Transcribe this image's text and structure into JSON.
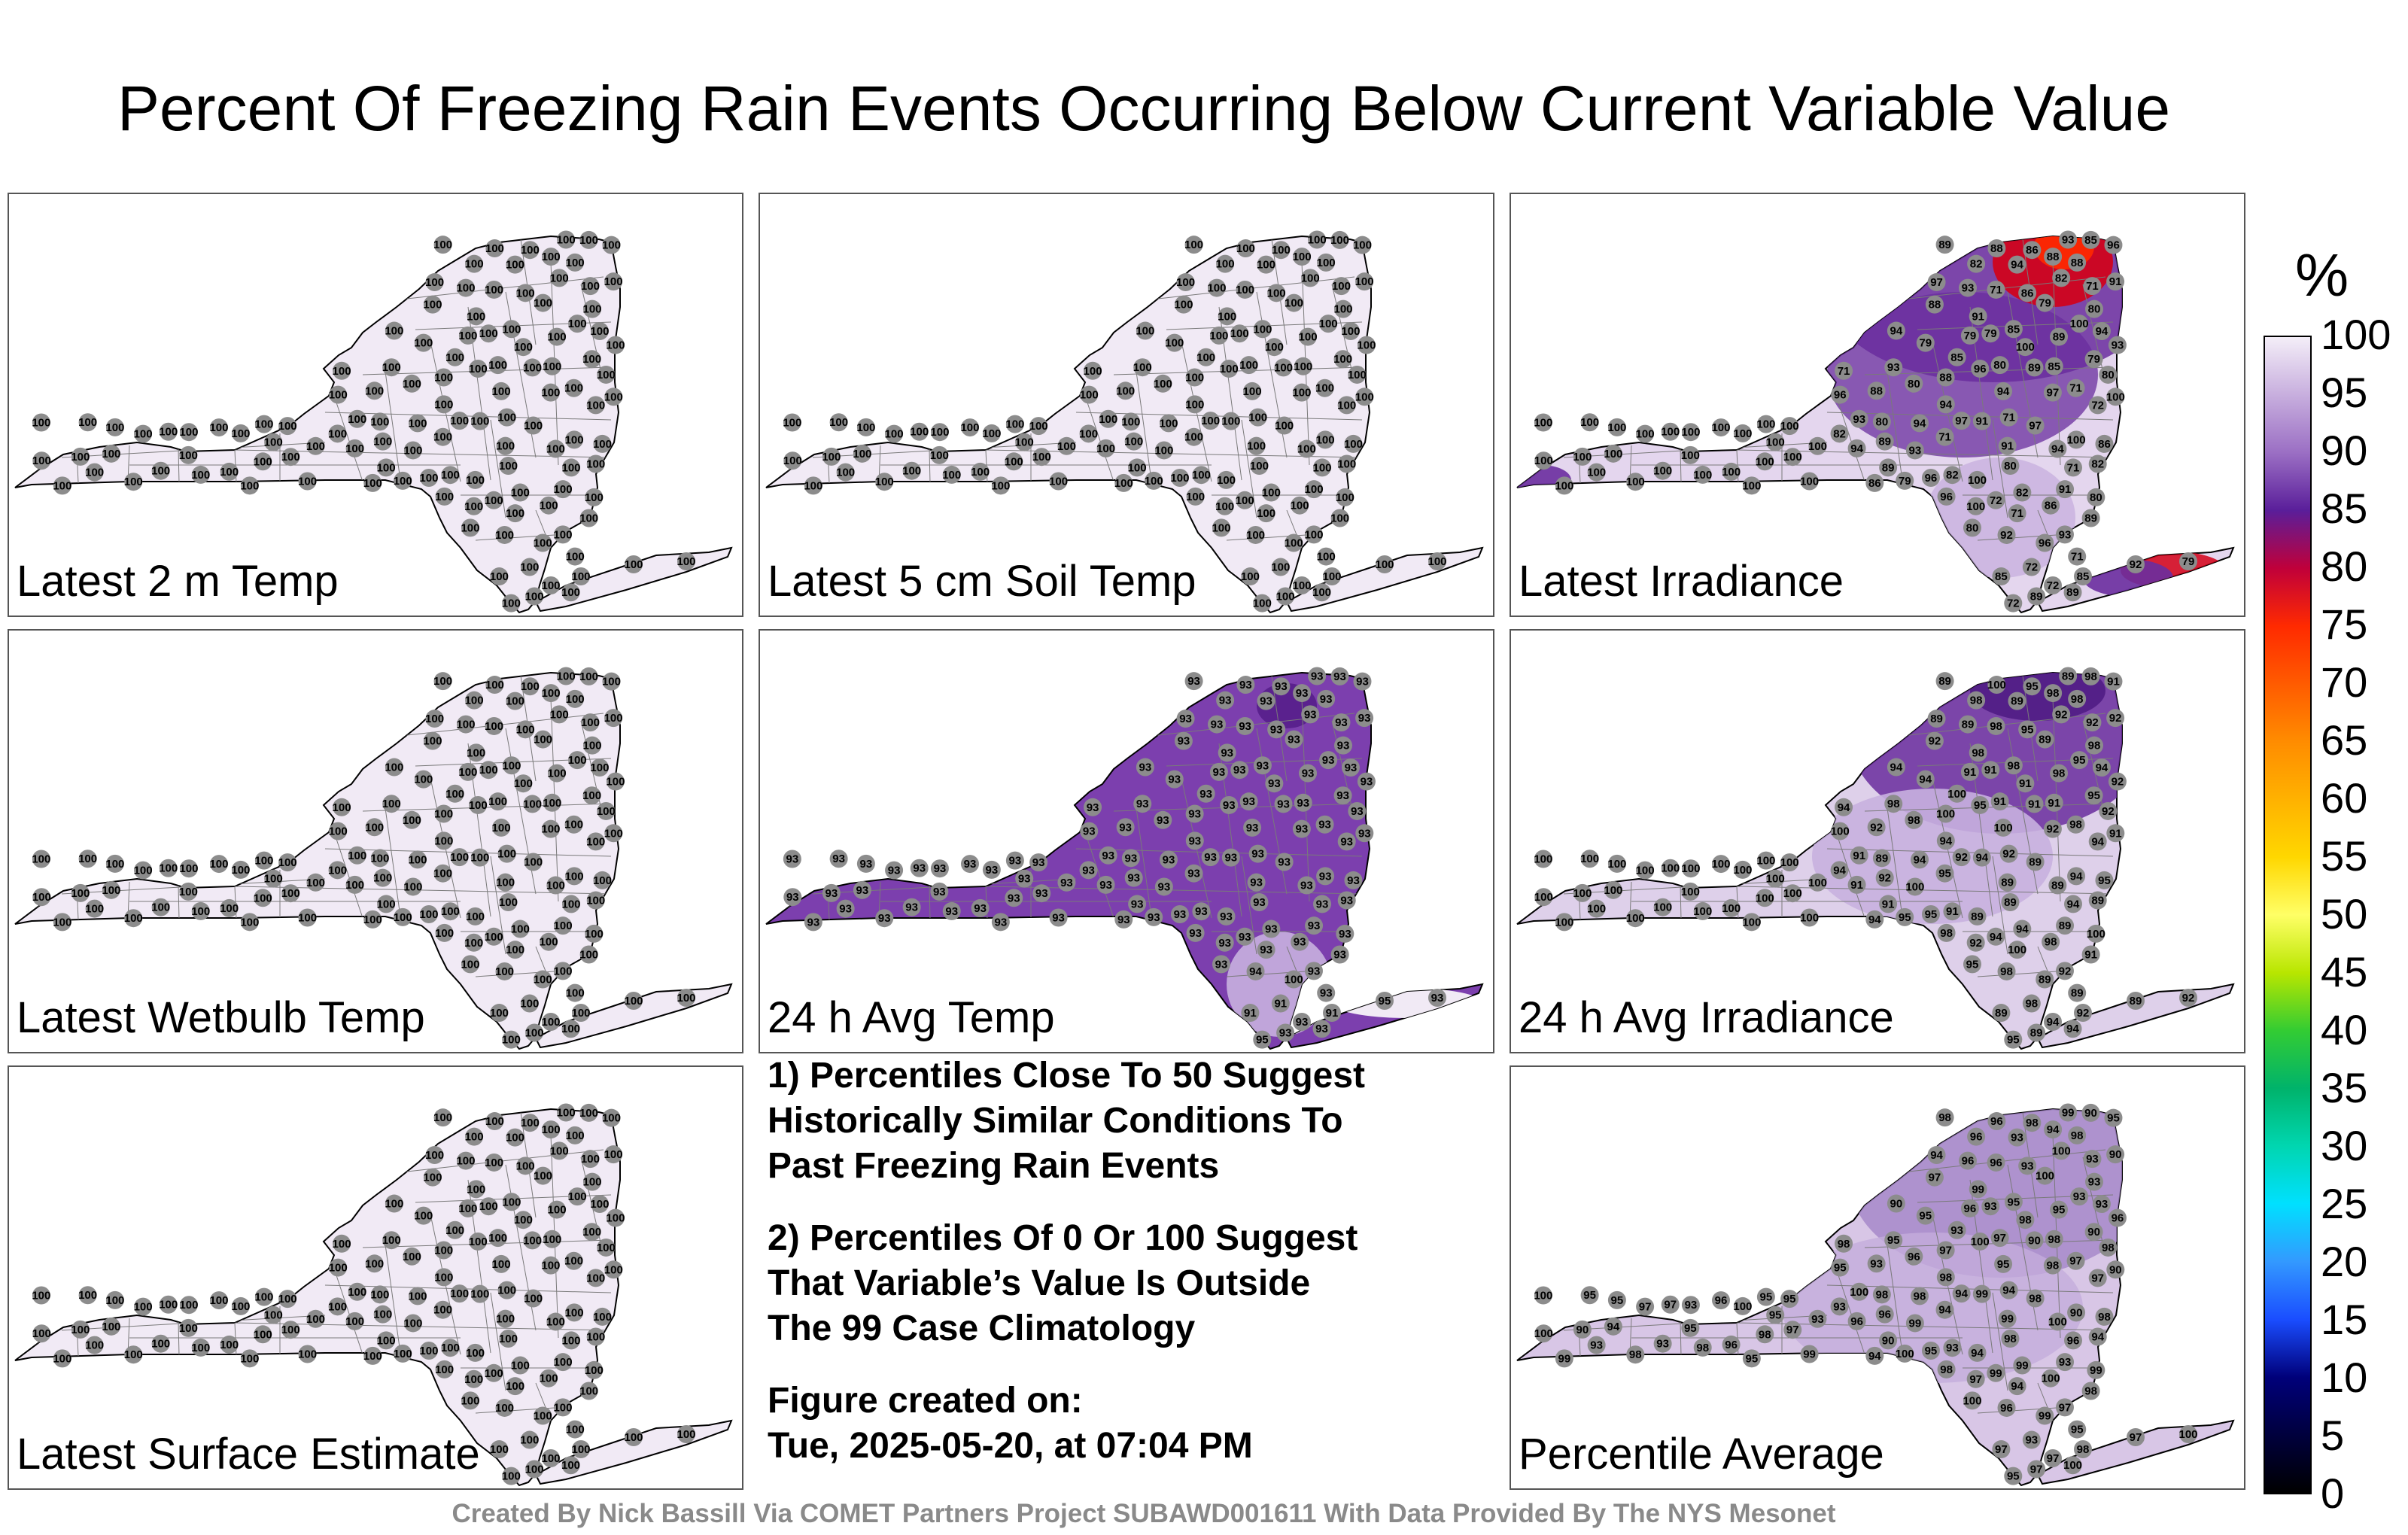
{
  "title": "Percent Of Freezing Rain Events Occurring Below Current Variable Value",
  "panels": [
    {
      "label": "Latest 2 m Temp",
      "mode": "uniform",
      "fill": "#f1eaf5",
      "value": "100"
    },
    {
      "label": "Latest 5 cm Soil Temp",
      "mode": "uniform",
      "fill": "#f1eaf5",
      "value": "100"
    },
    {
      "label": "Latest Irradiance",
      "mode": "irradiance",
      "fill": "#e4d6ee",
      "highlights": [
        "100",
        "97",
        "96",
        "94",
        "93",
        "92",
        "91",
        "89",
        "88",
        "86",
        "85",
        "82",
        "80",
        "79",
        "72",
        "71"
      ]
    },
    {
      "label": "Latest Wetbulb Temp",
      "mode": "uniform",
      "fill": "#f1eaf5",
      "value": "100"
    },
    {
      "label": "24 h Avg Temp",
      "mode": "uniform",
      "fill": "#7c3fae",
      "value": "93",
      "highlights": [
        "91",
        "94",
        "96",
        "99",
        "95",
        "100"
      ]
    },
    {
      "label": "24 h Avg Irradiance",
      "mode": "avg_irradiance",
      "fill": "#ded0ea",
      "highlights": [
        "100",
        "98",
        "95",
        "94",
        "92",
        "91",
        "89"
      ]
    },
    {
      "label": "Latest Surface Estimate",
      "mode": "uniform",
      "fill": "#f1eaf5",
      "value": "100"
    },
    {
      "label": "Percentile Average",
      "mode": "average",
      "fill": "#d8c6e6",
      "highlights": [
        "99",
        "98",
        "97",
        "96",
        "95",
        "94",
        "93",
        "90",
        "100"
      ]
    }
  ],
  "notes": [
    "1) Percentiles Close To 50 Suggest\nHistorically Similar Conditions To\nPast Freezing Rain Events",
    "2) Percentiles Of 0 Or 100 Suggest\nThat Variable’s Value Is Outside\nThe 99 Case Climatology",
    "Figure created on:\nTue, 2025-05-20, at 07:04 PM"
  ],
  "footer": "Created By Nick Bassill Via COMET Partners Project SUBAWD001611 With Data Provided By The NYS Mesonet",
  "colorbar": {
    "unit": "%",
    "ticks": [
      "100",
      "95",
      "90",
      "85",
      "80",
      "75",
      "70",
      "65",
      "60",
      "55",
      "50",
      "45",
      "40",
      "35",
      "30",
      "25",
      "20",
      "15",
      "10",
      "5",
      "0"
    ],
    "colors": {
      "c100": "#f4eef8",
      "c90": "#9b6fc4",
      "c85": "#5a1e9a",
      "c80": "#c0003a",
      "c75": "#ff2a00",
      "c65": "#ff8c00",
      "c55": "#ffd700",
      "c50": "#ffff66",
      "c45": "#b8e600",
      "c40": "#33cc33",
      "c35": "#00b36b",
      "c30": "#00d6b0",
      "c25": "#00e0ff",
      "c20": "#3399ff",
      "c15": "#1a4dff",
      "c10": "#00007a",
      "c0": "#000000"
    }
  }
}
